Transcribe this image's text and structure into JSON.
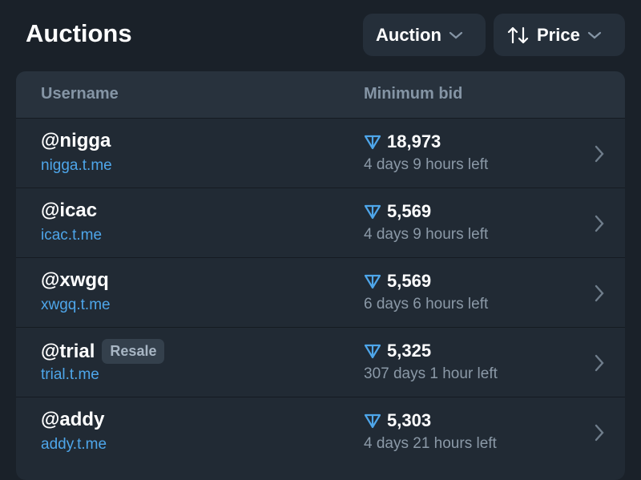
{
  "header": {
    "title": "Auctions",
    "filters": [
      "Auction",
      "Price"
    ]
  },
  "table": {
    "columns": [
      "Username",
      "Minimum bid"
    ],
    "rows": [
      {
        "username": "@nigga",
        "link": "nigga.t.me",
        "price": "18,973",
        "time_left": "4 days 9 hours left"
      },
      {
        "username": "@icac",
        "link": "icac.t.me",
        "price": "5,569",
        "time_left": "4 days 9 hours left"
      },
      {
        "username": "@xwgq",
        "link": "xwgq.t.me",
        "price": "5,569",
        "time_left": "6 days 6 hours left"
      },
      {
        "username": "@trial",
        "badge": "Resale",
        "link": "trial.t.me",
        "price": "5,325",
        "time_left": "307 days 1 hour left"
      },
      {
        "username": "@addy",
        "link": "addy.t.me",
        "price": "5,303",
        "time_left": "4 days 21 hours left"
      }
    ]
  }
}
